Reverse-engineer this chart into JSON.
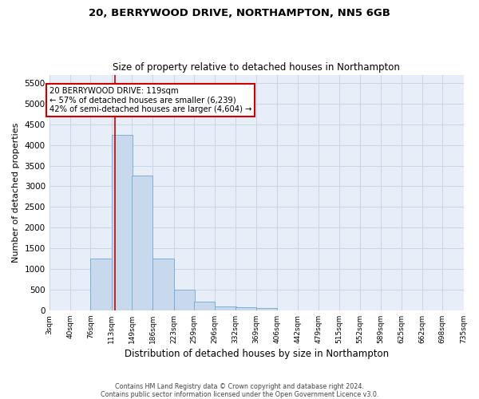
{
  "title1": "20, BERRYWOOD DRIVE, NORTHAMPTON, NN5 6GB",
  "title2": "Size of property relative to detached houses in Northampton",
  "xlabel": "Distribution of detached houses by size in Northampton",
  "ylabel": "Number of detached properties",
  "bin_edges": [
    3,
    40,
    76,
    113,
    149,
    186,
    223,
    259,
    296,
    332,
    369,
    406,
    442,
    479,
    515,
    552,
    589,
    625,
    662,
    698,
    735
  ],
  "bar_heights": [
    0,
    0,
    1250,
    4250,
    3250,
    1250,
    500,
    200,
    100,
    75,
    50,
    0,
    0,
    0,
    0,
    0,
    0,
    0,
    0,
    0
  ],
  "bar_color": "#c8d9ee",
  "bar_edgecolor": "#6fa8d5",
  "property_line_x": 119,
  "property_line_color": "#cc0000",
  "annotation_text": "20 BERRYWOOD DRIVE: 119sqm\n← 57% of detached houses are smaller (6,239)\n42% of semi-detached houses are larger (4,604) →",
  "annotation_box_color": "#ffffff",
  "annotation_box_edgecolor": "#cc0000",
  "ylim": [
    0,
    5700
  ],
  "yticks": [
    0,
    500,
    1000,
    1500,
    2000,
    2500,
    3000,
    3500,
    4000,
    4500,
    5000,
    5500
  ],
  "footer": "Contains HM Land Registry data © Crown copyright and database right 2024.\nContains public sector information licensed under the Open Government Licence v3.0.",
  "grid_color": "#c8d4e8",
  "background_color": "#e8eef8"
}
